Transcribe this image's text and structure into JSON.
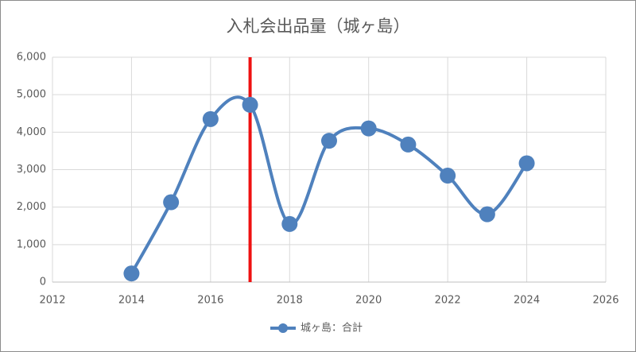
{
  "chart_data": {
    "type": "line",
    "title": "入札会出品量（城ヶ島）",
    "x": [
      2014,
      2015,
      2016,
      2017,
      2018,
      2019,
      2020,
      2021,
      2022,
      2023,
      2024
    ],
    "series": [
      {
        "name": "城ヶ島：合計",
        "color": "#4f81bd",
        "values": [
          230,
          2130,
          4350,
          4730,
          1550,
          3770,
          4100,
          3670,
          2840,
          1810,
          3170
        ]
      }
    ],
    "xlim": [
      2012,
      2026
    ],
    "xticks": [
      2012,
      2014,
      2016,
      2018,
      2020,
      2022,
      2024,
      2026
    ],
    "ylim": [
      0,
      6000
    ],
    "yticks": [
      0,
      {
        "value": 1000,
        "label": "1,000"
      },
      {
        "value": 2000,
        "label": "2,000"
      },
      {
        "value": 3000,
        "label": "3,000"
      },
      {
        "value": 4000,
        "label": "4,000"
      },
      {
        "value": 5000,
        "label": "5,000"
      },
      {
        "value": 6000,
        "label": "6,000"
      }
    ],
    "grid": true,
    "smooth": true,
    "legend": "bottom",
    "vline": {
      "x": 2017,
      "color": "#ee1111"
    }
  }
}
